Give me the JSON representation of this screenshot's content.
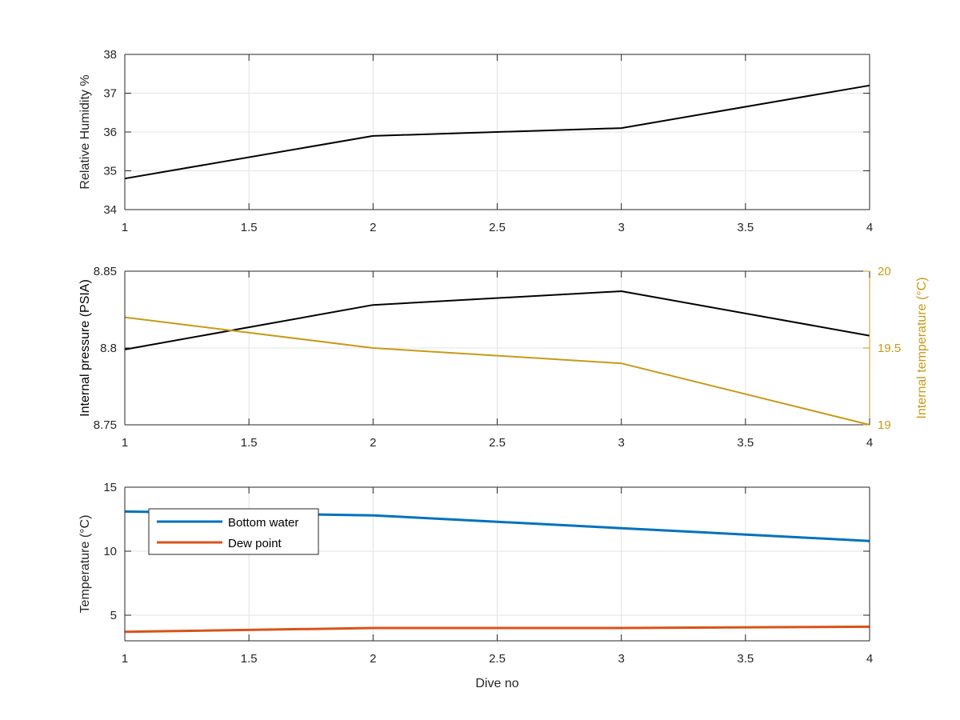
{
  "chart_data": [
    {
      "type": "line",
      "x": [
        1,
        2,
        3,
        4
      ],
      "xlim": [
        1,
        4
      ],
      "xticks": [
        "1",
        "1.5",
        "2",
        "2.5",
        "3",
        "3.5",
        "4"
      ],
      "xlabel": "",
      "ylabel": "Relative Humidity %",
      "ylim": [
        34,
        38
      ],
      "yticks": [
        "34",
        "35",
        "36",
        "37",
        "38"
      ],
      "grid": true,
      "series": [
        {
          "values": [
            34.8,
            35.9,
            36.1,
            37.2
          ],
          "color": "#000000"
        }
      ]
    },
    {
      "type": "line",
      "x": [
        1,
        2,
        3,
        4
      ],
      "xlim": [
        1,
        4
      ],
      "xticks": [
        "1",
        "1.5",
        "2",
        "2.5",
        "3",
        "3.5",
        "4"
      ],
      "xlabel": "",
      "ylabel": "Internal pressure (PSIA)",
      "ylim": [
        8.75,
        8.85
      ],
      "yticks": [
        "8.75",
        "8.8",
        "8.85"
      ],
      "ylabel_right": "Internal temperature (°C)",
      "ylim_right": [
        19,
        20
      ],
      "yticks_right": [
        "19",
        "19.5",
        "20"
      ],
      "grid": true,
      "series": [
        {
          "values": [
            8.799,
            8.828,
            8.837,
            8.808
          ],
          "color": "#000000",
          "axis": "left"
        },
        {
          "values": [
            19.7,
            19.5,
            19.4,
            19.0
          ],
          "color": "#C79A17",
          "axis": "right"
        }
      ]
    },
    {
      "type": "line",
      "x": [
        1,
        2,
        3,
        4
      ],
      "xlim": [
        1,
        4
      ],
      "xticks": [
        "1",
        "1.5",
        "2",
        "2.5",
        "3",
        "3.5",
        "4"
      ],
      "xlabel": "Dive no",
      "ylabel": "Temperature (°C)",
      "ylim": [
        3,
        15
      ],
      "yticks": [
        "5",
        "10",
        "15"
      ],
      "ytick_values": [
        5,
        10,
        15
      ],
      "grid": true,
      "legend": "top-left",
      "series": [
        {
          "name": "Bottom water",
          "values": [
            13.1,
            12.8,
            11.8,
            10.8
          ],
          "color": "#0072BD"
        },
        {
          "name": "Dew point",
          "values": [
            3.7,
            4.0,
            4.0,
            4.1
          ],
          "color": "#D95319"
        }
      ]
    }
  ]
}
